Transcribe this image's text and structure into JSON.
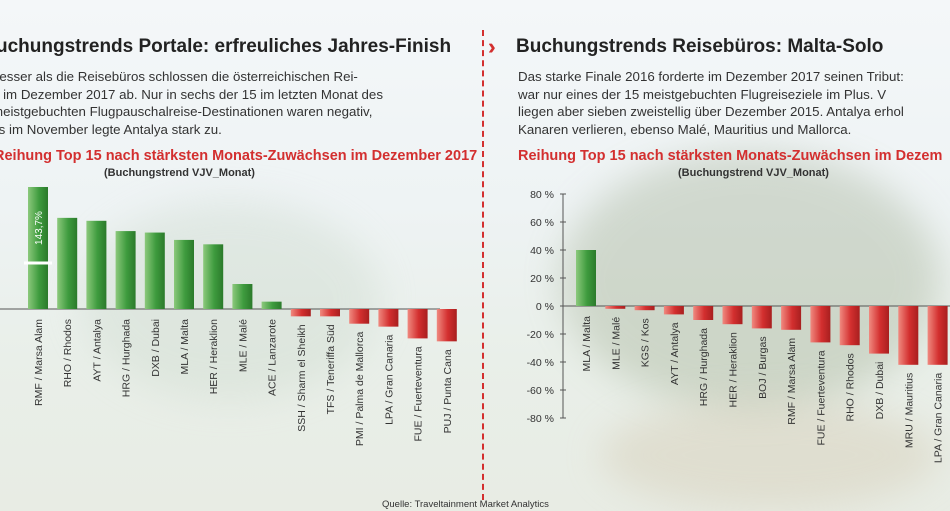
{
  "left": {
    "title": "uchungstrends Portale: erfreuliches Jahres-Finish",
    "body_lines": [
      "besser als die Reisebüros schlossen die österreichischen Rei-",
      "e im Dezember 2017 ab. Nur in sechs der 15 im letzten Monat des",
      "meistgebuchten Flugpauschalreise-Destinationen waren negativ,",
      "its im November legte Antalya stark zu."
    ]
  },
  "right": {
    "title": "Buchungstrends Reisebüros: Malta-Solo",
    "body_lines": [
      "Das starke Finale 2016 forderte im Dezember 2017 seinen Tribut:",
      "war nur eines der 15 meistgebuchten Flugreiseziele im Plus. V",
      "liegen aber sieben zweistellig über Dezember 2015. Antalya erhol",
      "Kanaren verlieren, ebenso Malé, Mauritius und Mallorca."
    ]
  },
  "source": "Quelle: Traveltainment Market Analytics",
  "colors": {
    "positive": "#3e9b3e",
    "negative": "#d32f2f",
    "accent": "#d32f2f"
  },
  "chart_data": [
    {
      "type": "bar",
      "title": "Reihung Top 15 nach stärksten Monats-Zuwächsen im Dezember 2017",
      "subtitle": "(Buchungstrend VJV_Monat)",
      "categories": [
        "RMF / Marsa Alam",
        "RHO / Rhodos",
        "AYT / Antalya",
        "HRG / Hurghada",
        "DXB / Dubai",
        "MLA / Malta",
        "HER / Heraklion",
        "MLE / Malé",
        "ACE / Lanzarote",
        "SSH / Sharm el Sheikh",
        "TFS / Teneriffa Süd",
        "PMI / Palma de Mallorca",
        "LPA / Gran Canaria",
        "FUE / Fuerteventura",
        "PUJ / Punta Cana"
      ],
      "values": [
        143.7,
        62,
        60,
        53,
        52,
        47,
        44,
        17,
        5,
        -5,
        -5,
        -10,
        -12,
        -20,
        -22
      ],
      "data_labels": [
        "143,7%"
      ],
      "axis_break": true
    },
    {
      "type": "bar",
      "title": "Reihung Top 15 nach stärksten Monats-Zuwächsen im Dezem",
      "subtitle": "(Buchungstrend VJV_Monat)",
      "categories": [
        "MLA / Malta",
        "MLE / Malé",
        "KGS / Kos",
        "AYT / Antalya",
        "HRG / Hurghada",
        "HER / Heraklion",
        "BOJ / Burgas",
        "RMF / Marsa Alam",
        "FUE / Fuerteventura",
        "RHO / Rhodos",
        "DXB / Dubai",
        "MRU / Mauritius",
        "LPA / Gran Canaria"
      ],
      "values": [
        40,
        -2,
        -3,
        -6,
        -10,
        -13,
        -16,
        -17,
        -26,
        -28,
        -34,
        -42,
        -42
      ],
      "yticks": [
        "80 %",
        "60 %",
        "40 %",
        "20 %",
        "0 %",
        "-20 %",
        "-40 %",
        "-60 %",
        "-80 %"
      ],
      "ylim": [
        -80,
        80
      ]
    }
  ]
}
